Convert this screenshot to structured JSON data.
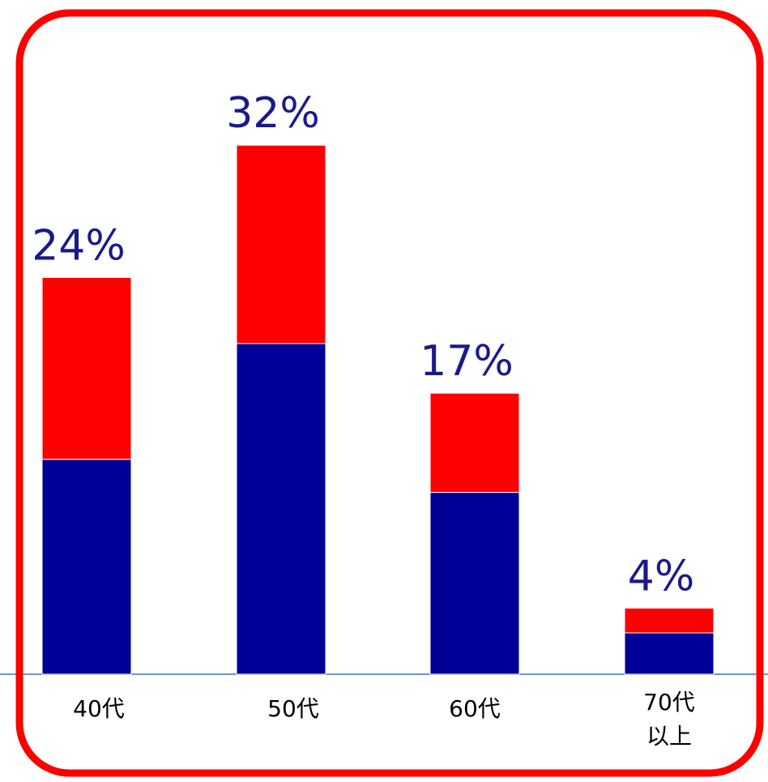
{
  "chart_data": {
    "type": "stacked_bar",
    "categories": [
      "40代",
      "50代",
      "60代",
      "70代\n以上"
    ],
    "series": [
      {
        "color": "#000099",
        "values": [
          13,
          20,
          11,
          2.5
        ]
      },
      {
        "color": "#ff0000",
        "values": [
          11,
          12,
          6,
          1.5
        ]
      }
    ],
    "values": [
      24,
      32,
      17,
      4
    ],
    "value_labels": [
      "24%",
      "32%",
      "17%",
      "4%"
    ],
    "value_label_color": "#1a1a8c"
  }
}
